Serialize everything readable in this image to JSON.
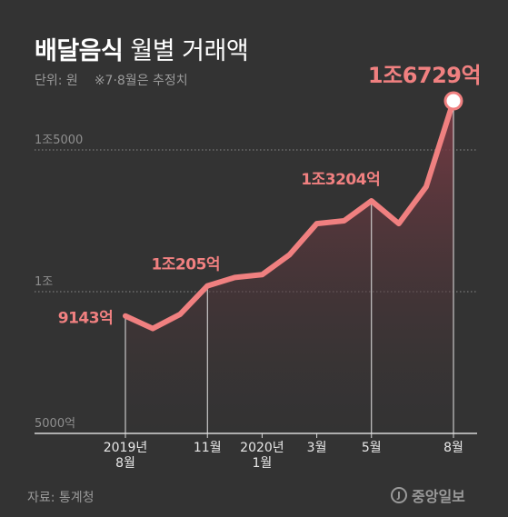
{
  "header": {
    "title_bold": "배달음식",
    "title_rest": "월별 거래액",
    "unit": "단위: 원",
    "note": "※7·8월은 추정치"
  },
  "footer": {
    "source": "자료: 통계청",
    "logo": "중앙일보",
    "logo_mark": "J"
  },
  "colors": {
    "background": "#333333",
    "line": "#f08080",
    "area_top": "#7a3a44",
    "grid": "#8a8a8a",
    "label": "#f08080",
    "axis_text": "#e8e8e8"
  },
  "chart_data": {
    "type": "area",
    "title": "배달음식 월별 거래액",
    "ylabel": "",
    "xlabel": "",
    "y_unit": "억원",
    "ylim": [
      5000,
      17000
    ],
    "y_ticks": [
      {
        "value": 5000,
        "label": "5000억"
      },
      {
        "value": 10000,
        "label": "1조"
      },
      {
        "value": 15000,
        "label": "1조5000"
      }
    ],
    "x": [
      "2019-08",
      "2019-09",
      "2019-10",
      "2019-11",
      "2019-12",
      "2020-01",
      "2020-02",
      "2020-03",
      "2020-04",
      "2020-05",
      "2020-06",
      "2020-07",
      "2020-08"
    ],
    "values": [
      9143,
      8700,
      9200,
      10205,
      10500,
      10600,
      11300,
      12400,
      12500,
      13204,
      12400,
      13700,
      16729
    ],
    "x_tick_labels": [
      {
        "x": "2019-08",
        "lines": [
          "2019년",
          "8월"
        ]
      },
      {
        "x": "2019-11",
        "lines": [
          "11월"
        ]
      },
      {
        "x": "2020-01",
        "lines": [
          "2020년",
          "1월"
        ]
      },
      {
        "x": "2020-03",
        "lines": [
          "3월"
        ]
      },
      {
        "x": "2020-05",
        "lines": [
          "5월"
        ]
      },
      {
        "x": "2020-08",
        "lines": [
          "8월"
        ]
      }
    ],
    "annotations": [
      {
        "x": "2019-08",
        "label": "9143억"
      },
      {
        "x": "2019-11",
        "label": "1조205억"
      },
      {
        "x": "2020-05",
        "label": "1조3204억"
      },
      {
        "x": "2020-08",
        "label": "1조6729억",
        "highlight": true
      }
    ],
    "estimated": [
      "2020-07",
      "2020-08"
    ]
  }
}
